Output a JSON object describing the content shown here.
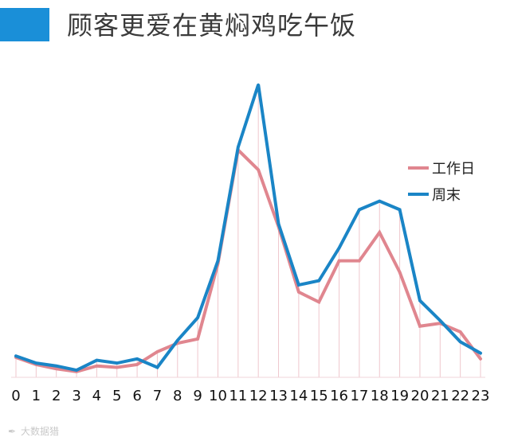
{
  "header": {
    "title": "顾客更爱在黄焖鸡吃午饭"
  },
  "chart_data": {
    "type": "line",
    "title": "顾客更爱在黄焖鸡吃午饭",
    "xlabel": "",
    "ylabel": "",
    "categories": [
      "0",
      "1",
      "2",
      "3",
      "4",
      "5",
      "6",
      "7",
      "8",
      "9",
      "10",
      "11",
      "12",
      "13",
      "14",
      "15",
      "16",
      "17",
      "18",
      "19",
      "20",
      "21",
      "22",
      "23"
    ],
    "series": [
      {
        "name": "工作日",
        "color": "#e0868f",
        "values": [
          2,
          -0.5,
          -2,
          -3,
          -1,
          -1.5,
          -0.5,
          4,
          7,
          8.5,
          35,
          75,
          68,
          48,
          25,
          21.5,
          36,
          36,
          46,
          32,
          13,
          14,
          11,
          1.5
        ]
      },
      {
        "name": "周末",
        "color": "#1a85c6",
        "values": [
          2.5,
          0,
          -1,
          -2.5,
          1,
          0,
          1.5,
          -1.5,
          8,
          16,
          36,
          76,
          98,
          49,
          27.5,
          29,
          40.5,
          54,
          57,
          54,
          22,
          15,
          7.5,
          3.5
        ]
      }
    ],
    "ylim": [
      -5,
      102
    ],
    "grid": false,
    "legend": "right",
    "guide_lines": true
  },
  "watermark": {
    "icon": "weibo-icon",
    "text": "大数据猎"
  }
}
